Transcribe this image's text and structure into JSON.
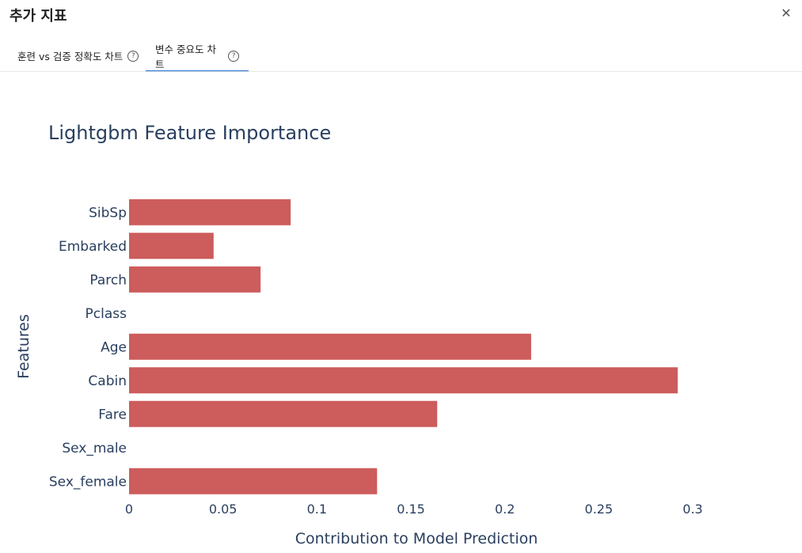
{
  "dialog": {
    "title": "추가 지표",
    "close_icon": "close-icon"
  },
  "tabs": [
    {
      "label": "훈련 vs 검증 정확도 차트",
      "icon": "help-circle-icon",
      "active": false
    },
    {
      "label": "변수 중요도 차트",
      "icon": "help-circle-icon",
      "active": true
    }
  ],
  "colors": {
    "bar": "#cd5c5c",
    "active_tab": "#1f6fd1",
    "text": "#2a3f5f"
  },
  "chart_data": {
    "type": "bar",
    "orientation": "horizontal",
    "title": "Lightgbm Feature Importance",
    "xlabel": "Contribution to Model Prediction",
    "ylabel": "Features",
    "categories": [
      "SibSp",
      "Embarked",
      "Parch",
      "Pclass",
      "Age",
      "Cabin",
      "Fare",
      "Sex_male",
      "Sex_female"
    ],
    "values": [
      0.086,
      0.045,
      0.07,
      0,
      0.214,
      0.292,
      0.164,
      0,
      0.132
    ],
    "xlim": [
      0,
      0.3
    ],
    "xticks": [
      0,
      0.05,
      0.1,
      0.15,
      0.2,
      0.25,
      0.3
    ],
    "xtick_labels": [
      "0",
      "0.05",
      "0.1",
      "0.15",
      "0.2",
      "0.25",
      "0.3"
    ],
    "grid": false,
    "legend": "none"
  }
}
